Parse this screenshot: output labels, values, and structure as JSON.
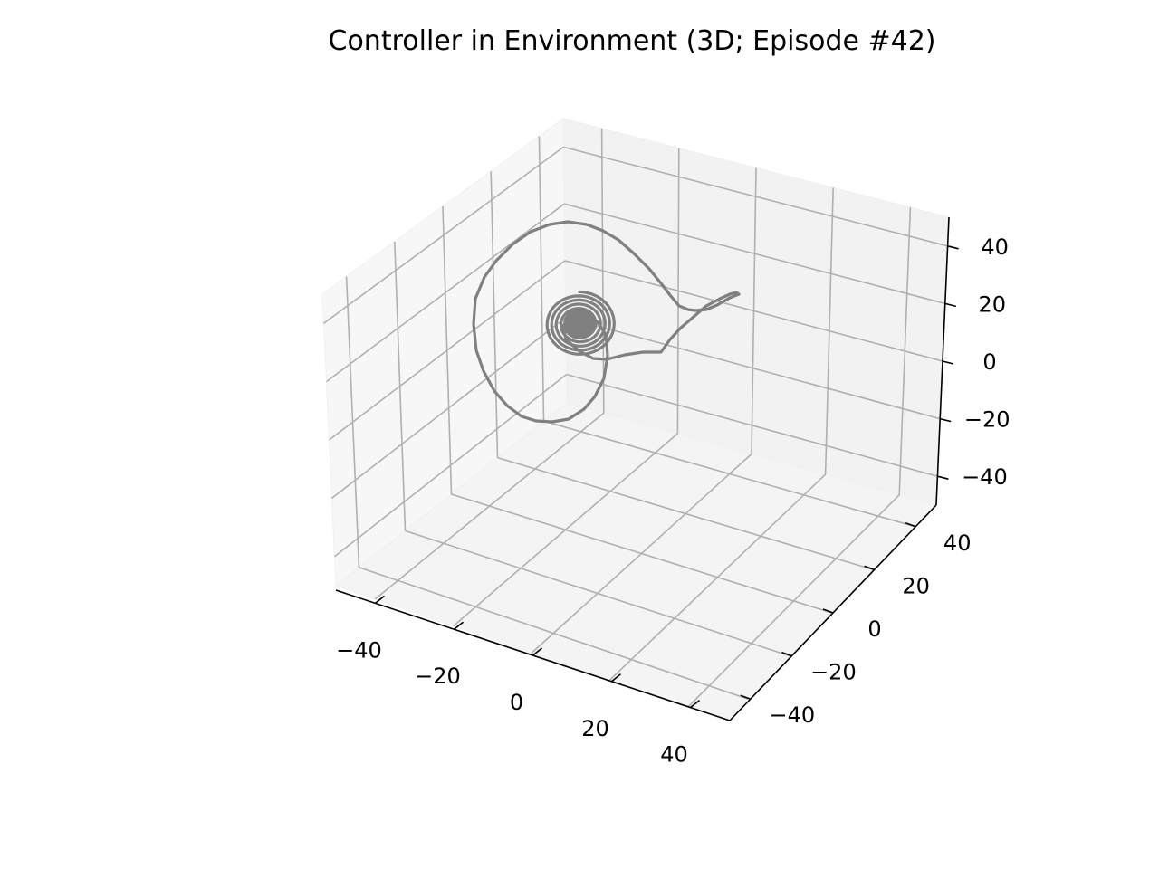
{
  "chart_data": {
    "type": "line",
    "projection": "3d",
    "title": "Controller in Environment (3D; Episode #42)",
    "xlabel": "",
    "ylabel": "",
    "zlabel": "",
    "xlim": [
      -50,
      50
    ],
    "ylim": [
      -50,
      50
    ],
    "zlim": [
      -50,
      50
    ],
    "x_ticks": [
      "−40",
      "−20",
      "0",
      "20",
      "40"
    ],
    "y_ticks": [
      "−40",
      "−20",
      "0",
      "20",
      "40"
    ],
    "z_ticks": [
      "−40",
      "−20",
      "0",
      "20",
      "40"
    ],
    "grid": true,
    "series": [
      {
        "color": "#808080"
      }
    ]
  }
}
